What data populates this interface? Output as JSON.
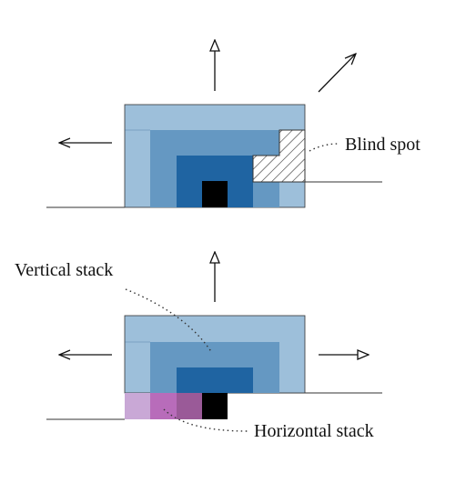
{
  "labels": {
    "blind_spot": "Blind spot",
    "vertical_stack": "Vertical stack",
    "horizontal_stack": "Horizontal stack"
  },
  "colors": {
    "level_1": "#9dbfda",
    "level_2": "#6598c2",
    "level_3": "#1f64a2",
    "level_4": "#000000",
    "horizontal_1": "#c9a8d6",
    "horizontal_2": "#b86cba",
    "horizontal_3": "#9a5a98",
    "ground_line": "#333333",
    "arrow": "#111111"
  }
}
